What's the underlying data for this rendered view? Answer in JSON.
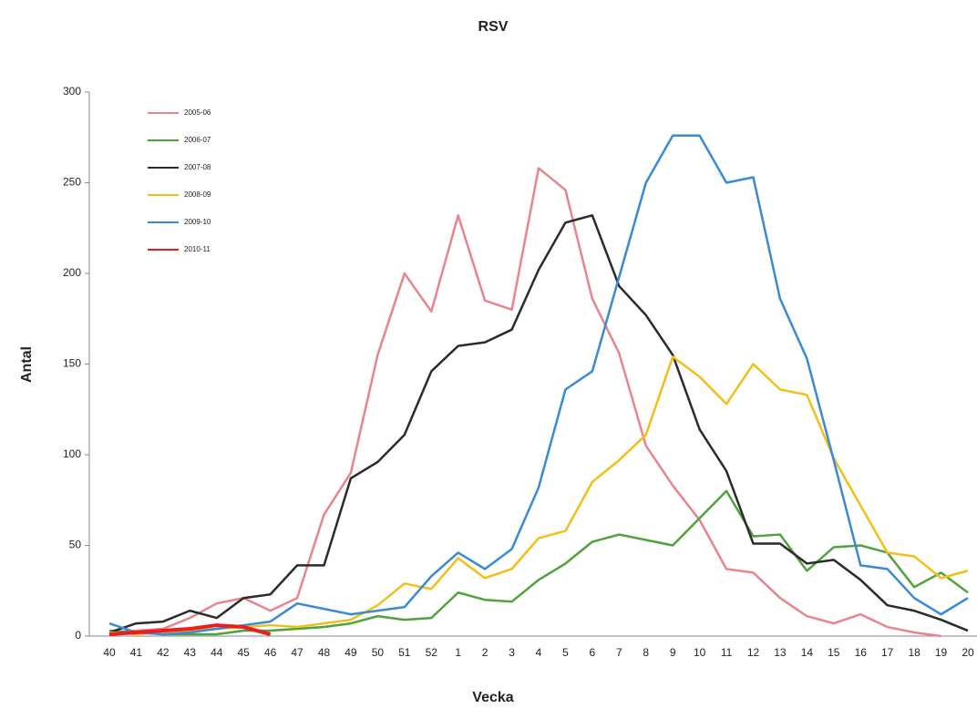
{
  "chart_data": {
    "type": "line",
    "title": "RSV",
    "xlabel": "Vecka",
    "ylabel": "Antal",
    "categories": [
      "40",
      "41",
      "42",
      "43",
      "44",
      "45",
      "46",
      "47",
      "48",
      "49",
      "50",
      "51",
      "52",
      "1",
      "2",
      "3",
      "4",
      "5",
      "6",
      "7",
      "8",
      "9",
      "10",
      "11",
      "12",
      "13",
      "14",
      "15",
      "16",
      "17",
      "18",
      "19",
      "20"
    ],
    "ylim": [
      0,
      300
    ],
    "yticks": [
      0,
      50,
      100,
      150,
      200,
      250,
      300
    ],
    "legend": "upper-left",
    "series": [
      {
        "name": "2005-06",
        "color": "#e8848f",
        "values": [
          2,
          3,
          4,
          10,
          18,
          21,
          14,
          21,
          67,
          90,
          155,
          200,
          179,
          232,
          185,
          180,
          258,
          246,
          186,
          156,
          105,
          83,
          64,
          37,
          35,
          21,
          11,
          7,
          12,
          5,
          2,
          0,
          null
        ]
      },
      {
        "name": "2006-07",
        "color": "#4fa23c",
        "values": [
          3,
          2,
          1,
          1,
          1,
          3,
          3,
          4,
          5,
          7,
          11,
          9,
          10,
          24,
          20,
          19,
          31,
          40,
          52,
          56,
          53,
          50,
          65,
          80,
          55,
          56,
          36,
          49,
          50,
          46,
          27,
          35,
          24
        ]
      },
      {
        "name": "2007-08",
        "color": "#2b2b2b",
        "values": [
          2,
          7,
          8,
          14,
          10,
          21,
          23,
          39,
          39,
          87,
          96,
          111,
          146,
          160,
          162,
          169,
          202,
          228,
          232,
          193,
          177,
          155,
          114,
          91,
          51,
          51,
          40,
          42,
          31,
          17,
          14,
          9,
          3
        ]
      },
      {
        "name": "2008-09",
        "color": "#f2bf1a",
        "values": [
          2,
          1,
          2,
          3,
          4,
          5,
          6,
          5,
          7,
          9,
          17,
          29,
          26,
          43,
          32,
          37,
          54,
          58,
          85,
          97,
          111,
          154,
          143,
          128,
          150,
          136,
          133,
          98,
          72,
          46,
          44,
          32,
          36
        ]
      },
      {
        "name": "2009-10",
        "color": "#3a8ad4",
        "values": [
          7,
          2,
          1,
          2,
          4,
          6,
          8,
          18,
          15,
          12,
          14,
          16,
          33,
          46,
          37,
          48,
          82,
          136,
          146,
          198,
          250,
          276,
          276,
          250,
          253,
          186,
          153,
          97,
          39,
          37,
          21,
          12,
          21
        ]
      },
      {
        "name": "2010-11",
        "color": "#ee1c1c",
        "values": [
          1,
          2,
          3,
          4,
          6,
          5,
          1,
          null,
          null,
          null,
          null,
          null,
          null,
          null,
          null,
          null,
          null,
          null,
          null,
          null,
          null,
          null,
          null,
          null,
          null,
          null,
          null,
          null,
          null,
          null,
          null,
          null,
          null
        ]
      }
    ]
  }
}
